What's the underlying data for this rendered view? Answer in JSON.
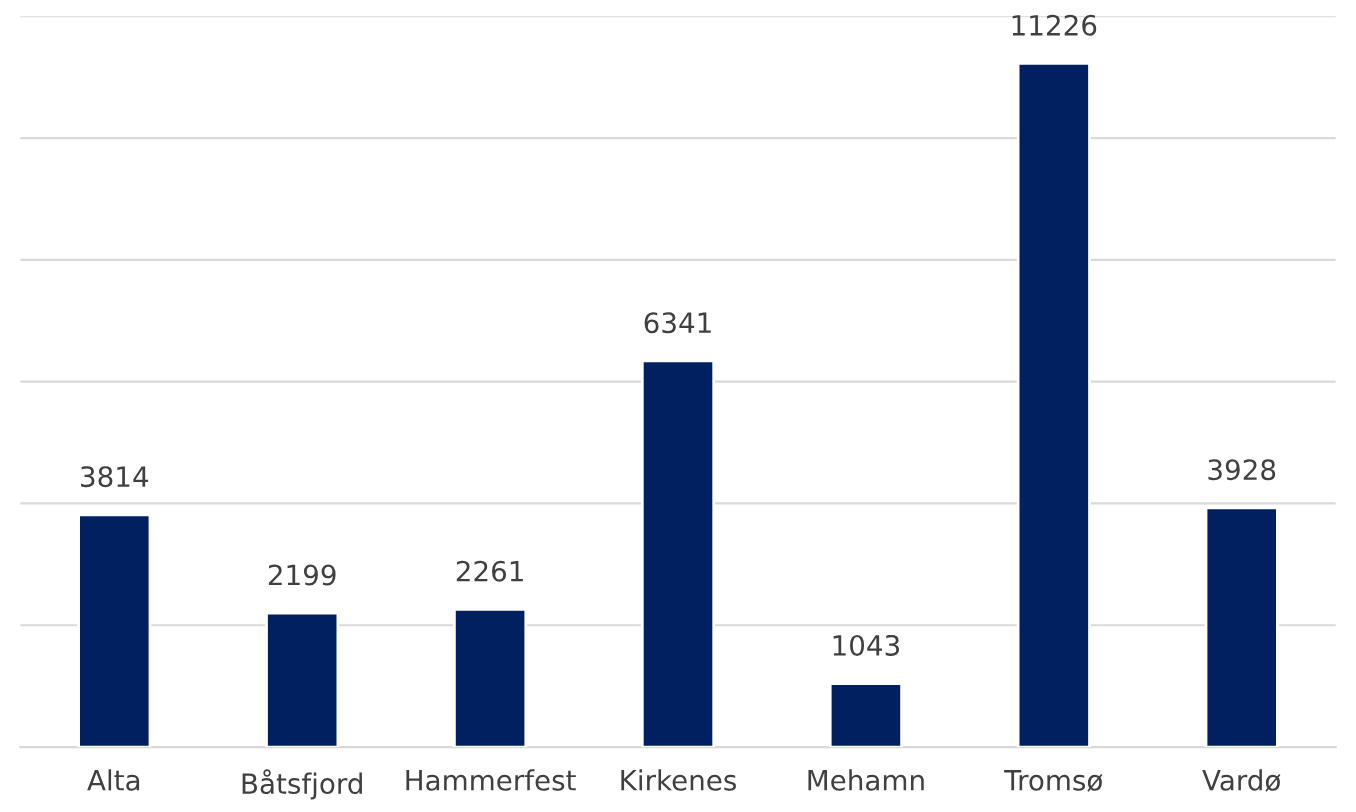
{
  "chart_data": {
    "type": "bar",
    "categories": [
      "Alta",
      "Båtsfjord",
      "Hammerfest",
      "Kirkenes",
      "Mehamn",
      "Tromsø",
      "Vardø"
    ],
    "values": [
      3814,
      2199,
      2261,
      6341,
      1043,
      11226,
      3928
    ],
    "color": "#002060",
    "ylim": [
      0,
      12000
    ],
    "yticks": [
      {
        "value": 0,
        "label": null
      },
      {
        "value": 2000,
        "label": null
      },
      {
        "value": 4000,
        "label": null
      },
      {
        "value": 6000,
        "label": null
      },
      {
        "value": 8000,
        "label": null
      },
      {
        "value": 10000,
        "label": null
      },
      {
        "value": 12000,
        "label": null
      }
    ],
    "tick_labels": "x",
    "grid": "y",
    "data_labels": true
  }
}
